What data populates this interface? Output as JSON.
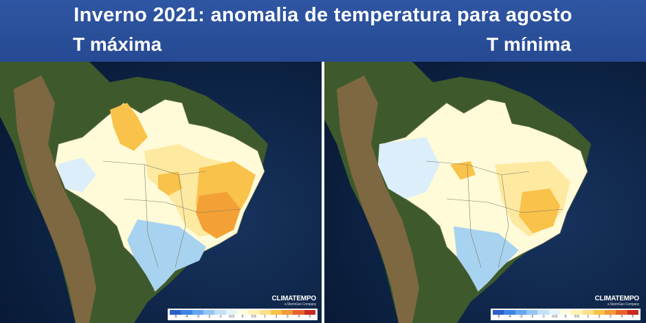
{
  "header": {
    "title": "Inverno 2021: anomalia de temperatura para agosto",
    "subtitle_left": "T máxima",
    "subtitle_right": "T mínima"
  },
  "panels": [
    {
      "logo": "CLIMATEMPO",
      "logo_tag": "a StormGeo Company",
      "legend_ticks": [
        "-5",
        "-4",
        "-3",
        "-2",
        "-1",
        "-0.5",
        "0",
        "0.5",
        "1",
        "2",
        "3",
        "4",
        "5"
      ]
    },
    {
      "logo": "CLIMATEMPO",
      "logo_tag": "a StormGeo Company",
      "legend_ticks": [
        "-5",
        "-4",
        "-3",
        "-2",
        "-1",
        "-0.5",
        "0",
        "0.5",
        "1",
        "2",
        "3",
        "4",
        "5"
      ]
    }
  ],
  "colors": {
    "ocean": "#0e2448",
    "land": "#3e5a2c",
    "andes": "#8a6b45",
    "neutral": "#fffbd8",
    "warm_light": "#fde9a0",
    "warm": "#f9c24a",
    "warm_strong": "#f3a136",
    "cold_light": "#dceef9",
    "cold": "#a8d3f0",
    "legend_scale": [
      "#2c5fc9",
      "#3f84e5",
      "#64a6ef",
      "#94c5f4",
      "#c3e1f8",
      "#e7f4fb",
      "#fffde1",
      "#fff2b3",
      "#fde08a",
      "#f9c24a",
      "#f29a37",
      "#e8632c",
      "#c92a22"
    ]
  }
}
